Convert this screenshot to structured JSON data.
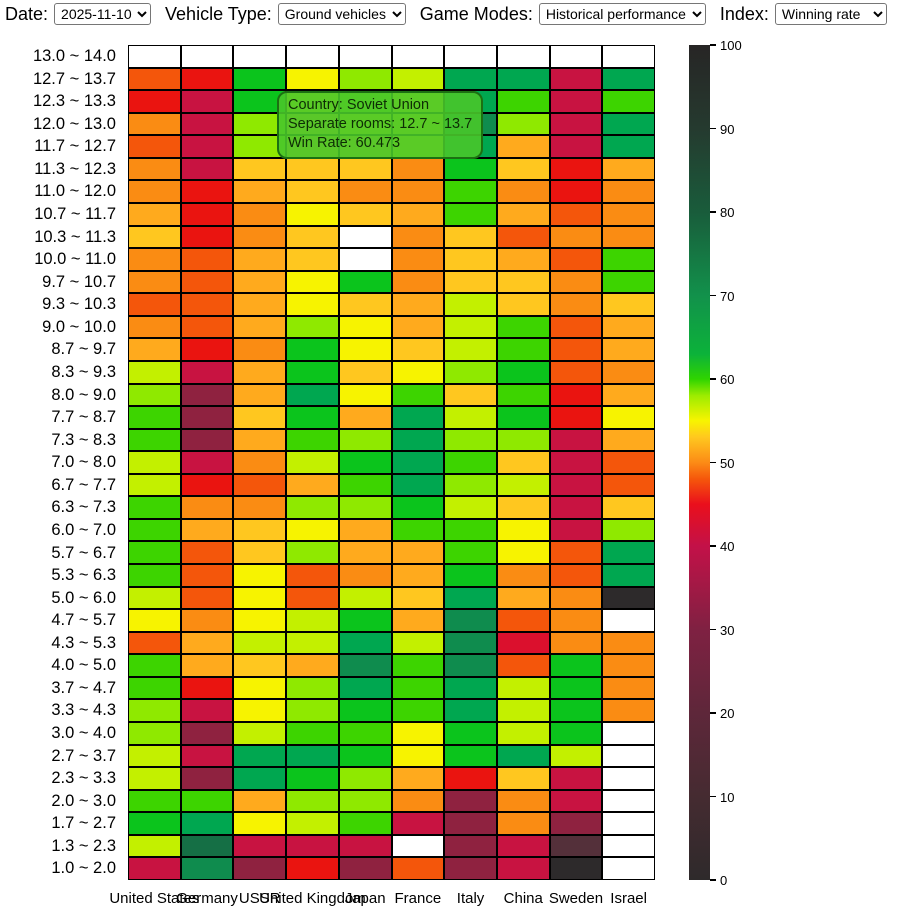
{
  "controls": {
    "date_label": "Date:",
    "date_value": "2025-11-10",
    "vehicle_type_label": "Vehicle Type:",
    "vehicle_type_value": "Ground vehicles",
    "game_modes_label": "Game Modes:",
    "game_modes_value": "Historical performance",
    "index_label": "Index:",
    "index_value": "Winning rate"
  },
  "tooltip": {
    "line1": "Country: Soviet Union",
    "line2": "Separate rooms: 12.7 ~ 13.7",
    "line3": "Win Rate: 60.473",
    "bg_color": "#48c62a"
  },
  "chart_data": {
    "type": "heatmap",
    "x_categories": [
      "United States",
      "Germany",
      "USSR",
      "United Kingdom",
      "Japan",
      "France",
      "Italy",
      "China",
      "Sweden",
      "Israel"
    ],
    "y_categories": [
      "13.0 ~ 14.0",
      "12.7 ~ 13.7",
      "12.3 ~ 13.3",
      "12.0 ~ 13.0",
      "11.7 ~ 12.7",
      "11.3 ~ 12.3",
      "11.0 ~ 12.0",
      "10.7 ~ 11.7",
      "10.3 ~ 11.3",
      "10.0 ~ 11.0",
      "9.7 ~ 10.7",
      "9.3 ~ 10.3",
      "9.0 ~ 10.0",
      "8.7 ~ 9.7",
      "8.3 ~ 9.3",
      "8.0 ~ 9.0",
      "7.7 ~ 8.7",
      "7.3 ~ 8.3",
      "7.0 ~ 8.0",
      "6.7 ~ 7.7",
      "6.3 ~ 7.3",
      "6.0 ~ 7.0",
      "5.7 ~ 6.7",
      "5.3 ~ 6.3",
      "5.0 ~ 6.0",
      "4.7 ~ 5.7",
      "4.3 ~ 5.3",
      "4.0 ~ 5.0",
      "3.7 ~ 4.7",
      "3.3 ~ 4.3",
      "3.0 ~ 4.0",
      "2.7 ~ 3.7",
      "2.3 ~ 3.3",
      "2.0 ~ 3.0",
      "1.7 ~ 2.7",
      "1.3 ~ 2.3",
      "1.0 ~ 2.0"
    ],
    "value_label": "Win Rate",
    "highlighted_cell": {
      "country": "Soviet Union",
      "separate_rooms": "12.7 ~ 13.7",
      "win_rate": 60.473
    },
    "palette": {
      "W": {
        "color": "#ffffff",
        "approx_value": null
      },
      "K": {
        "color": "#2d2a2b",
        "approx_value": 2
      },
      "M1": {
        "color": "#54303a",
        "approx_value": 15
      },
      "M2": {
        "color": "#8f2240",
        "approx_value": 30
      },
      "M3": {
        "color": "#c81341",
        "approx_value": 38
      },
      "RC": {
        "color": "#db102d",
        "approx_value": 42
      },
      "R": {
        "color": "#ea1410",
        "approx_value": 45
      },
      "RO": {
        "color": "#f4560b",
        "approx_value": 48
      },
      "O": {
        "color": "#fa8c13",
        "approx_value": 50
      },
      "OY": {
        "color": "#ffaa1d",
        "approx_value": 51.5
      },
      "G0": {
        "color": "#ffc71f",
        "approx_value": 53
      },
      "Y": {
        "color": "#f7f300",
        "approx_value": 55
      },
      "YG": {
        "color": "#c3f000",
        "approx_value": 56.5
      },
      "LG": {
        "color": "#8fe900",
        "approx_value": 58
      },
      "G": {
        "color": "#3dd400",
        "approx_value": 60
      },
      "G2": {
        "color": "#0bc41c",
        "approx_value": 61.5
      },
      "T": {
        "color": "#00a750",
        "approx_value": 65
      },
      "DT": {
        "color": "#0f8c4e",
        "approx_value": 67.5
      },
      "DG": {
        "color": "#156f45",
        "approx_value": 72
      }
    },
    "cells": [
      [
        "W",
        "W",
        "W",
        "W",
        "W",
        "W",
        "W",
        "W",
        "W",
        "W"
      ],
      [
        "RO",
        "R",
        "G2",
        "Y",
        "LG",
        "YG",
        "T",
        "T",
        "M3",
        "T"
      ],
      [
        "R",
        "M3",
        "G2",
        "Y",
        "LG",
        "Y",
        "T",
        "G",
        "M3",
        "G"
      ],
      [
        "O",
        "M3",
        "LG",
        "G0",
        "Y",
        "Y",
        "DT",
        "LG",
        "M3",
        "T"
      ],
      [
        "RO",
        "M3",
        "LG",
        "G0",
        "G0",
        "Y",
        "T",
        "OY",
        "M3",
        "T"
      ],
      [
        "O",
        "M3",
        "G0",
        "G0",
        "G0",
        "O",
        "G2",
        "G0",
        "R",
        "OY"
      ],
      [
        "O",
        "R",
        "OY",
        "G0",
        "O",
        "O",
        "G",
        "O",
        "R",
        "O"
      ],
      [
        "OY",
        "R",
        "O",
        "Y",
        "G0",
        "OY",
        "G",
        "OY",
        "RO",
        "O"
      ],
      [
        "G0",
        "R",
        "O",
        "G0",
        "W",
        "O",
        "G0",
        "RO",
        "O",
        "O"
      ],
      [
        "O",
        "RO",
        "OY",
        "G0",
        "W",
        "O",
        "G0",
        "OY",
        "RO",
        "G"
      ],
      [
        "O",
        "RO",
        "OY",
        "Y",
        "G2",
        "O",
        "G0",
        "G0",
        "O",
        "G"
      ],
      [
        "RO",
        "RO",
        "OY",
        "Y",
        "G0",
        "OY",
        "YG",
        "G0",
        "O",
        "G0"
      ],
      [
        "O",
        "RO",
        "OY",
        "LG",
        "Y",
        "OY",
        "YG",
        "G",
        "RO",
        "OY"
      ],
      [
        "OY",
        "R",
        "O",
        "G2",
        "Y",
        "G0",
        "YG",
        "G",
        "RO",
        "OY"
      ],
      [
        "YG",
        "M3",
        "OY",
        "G2",
        "G0",
        "Y",
        "LG",
        "G2",
        "RO",
        "O"
      ],
      [
        "LG",
        "M2",
        "OY",
        "T",
        "Y",
        "G",
        "G0",
        "G",
        "R",
        "OY"
      ],
      [
        "G",
        "M2",
        "G0",
        "G2",
        "OY",
        "T",
        "YG",
        "G2",
        "R",
        "Y"
      ],
      [
        "G",
        "M2",
        "OY",
        "G",
        "LG",
        "T",
        "LG",
        "LG",
        "M3",
        "OY"
      ],
      [
        "YG",
        "M3",
        "O",
        "YG",
        "G2",
        "T",
        "G",
        "G0",
        "M3",
        "RO"
      ],
      [
        "YG",
        "R",
        "RO",
        "OY",
        "G",
        "T",
        "LG",
        "YG",
        "M3",
        "RO"
      ],
      [
        "G",
        "O",
        "O",
        "LG",
        "LG",
        "G2",
        "YG",
        "G0",
        "M3",
        "G0"
      ],
      [
        "G",
        "OY",
        "G0",
        "Y",
        "OY",
        "G",
        "G",
        "Y",
        "M3",
        "LG"
      ],
      [
        "G",
        "RO",
        "G0",
        "LG",
        "OY",
        "OY",
        "G",
        "Y",
        "RO",
        "T"
      ],
      [
        "G",
        "RO",
        "Y",
        "RO",
        "O",
        "OY",
        "G2",
        "O",
        "RO",
        "T"
      ],
      [
        "YG",
        "RO",
        "Y",
        "RO",
        "YG",
        "G0",
        "T",
        "OY",
        "O",
        "K"
      ],
      [
        "Y",
        "O",
        "Y",
        "YG",
        "G2",
        "OY",
        "DT",
        "RO",
        "O",
        "W"
      ],
      [
        "RO",
        "OY",
        "YG",
        "YG",
        "T",
        "YG",
        "DT",
        "RC",
        "O",
        "O"
      ],
      [
        "G",
        "OY",
        "G0",
        "OY",
        "DT",
        "G",
        "DT",
        "RO",
        "G2",
        "O"
      ],
      [
        "G",
        "R",
        "Y",
        "LG",
        "T",
        "G",
        "T",
        "YG",
        "G2",
        "O"
      ],
      [
        "LG",
        "M3",
        "Y",
        "LG",
        "G2",
        "G",
        "T",
        "YG",
        "G2",
        "O"
      ],
      [
        "LG",
        "M2",
        "YG",
        "G",
        "G",
        "Y",
        "G2",
        "YG",
        "G2",
        "W"
      ],
      [
        "YG",
        "M3",
        "T",
        "T",
        "G2",
        "Y",
        "G2",
        "T",
        "YG",
        "W"
      ],
      [
        "YG",
        "M2",
        "T",
        "G2",
        "LG",
        "OY",
        "R",
        "G0",
        "M3",
        "W"
      ],
      [
        "G",
        "G",
        "OY",
        "LG",
        "LG",
        "O",
        "M2",
        "O",
        "M3",
        "W"
      ],
      [
        "G2",
        "T",
        "Y",
        "YG",
        "G",
        "M3",
        "M2",
        "O",
        "M2",
        "W"
      ],
      [
        "YG",
        "DG",
        "M3",
        "M3",
        "M3",
        "W",
        "M2",
        "M3",
        "M1",
        "W"
      ],
      [
        "M3",
        "DT",
        "M2",
        "R",
        "M2",
        "RO",
        "M2",
        "M3",
        "K",
        "W"
      ]
    ],
    "colorbar": {
      "min": 0,
      "max": 100,
      "ticks": [
        0,
        10,
        20,
        30,
        40,
        50,
        60,
        70,
        80,
        90,
        100
      ],
      "gradient_stops": [
        {
          "v": 0,
          "c": "#2e2a2b"
        },
        {
          "v": 10,
          "c": "#452b31"
        },
        {
          "v": 20,
          "c": "#5e273a"
        },
        {
          "v": 30,
          "c": "#7f2142"
        },
        {
          "v": 40,
          "c": "#c31148"
        },
        {
          "v": 45,
          "c": "#ea0f1c"
        },
        {
          "v": 48,
          "c": "#f5560b"
        },
        {
          "v": 50,
          "c": "#fc8b16"
        },
        {
          "v": 53,
          "c": "#ffc71f"
        },
        {
          "v": 55,
          "c": "#f8f400"
        },
        {
          "v": 58,
          "c": "#9dec00"
        },
        {
          "v": 60,
          "c": "#2fd400"
        },
        {
          "v": 63,
          "c": "#0cb23a"
        },
        {
          "v": 70,
          "c": "#12914b"
        },
        {
          "v": 80,
          "c": "#195c3b"
        },
        {
          "v": 90,
          "c": "#253a2f"
        },
        {
          "v": 100,
          "c": "#272525"
        }
      ]
    }
  }
}
